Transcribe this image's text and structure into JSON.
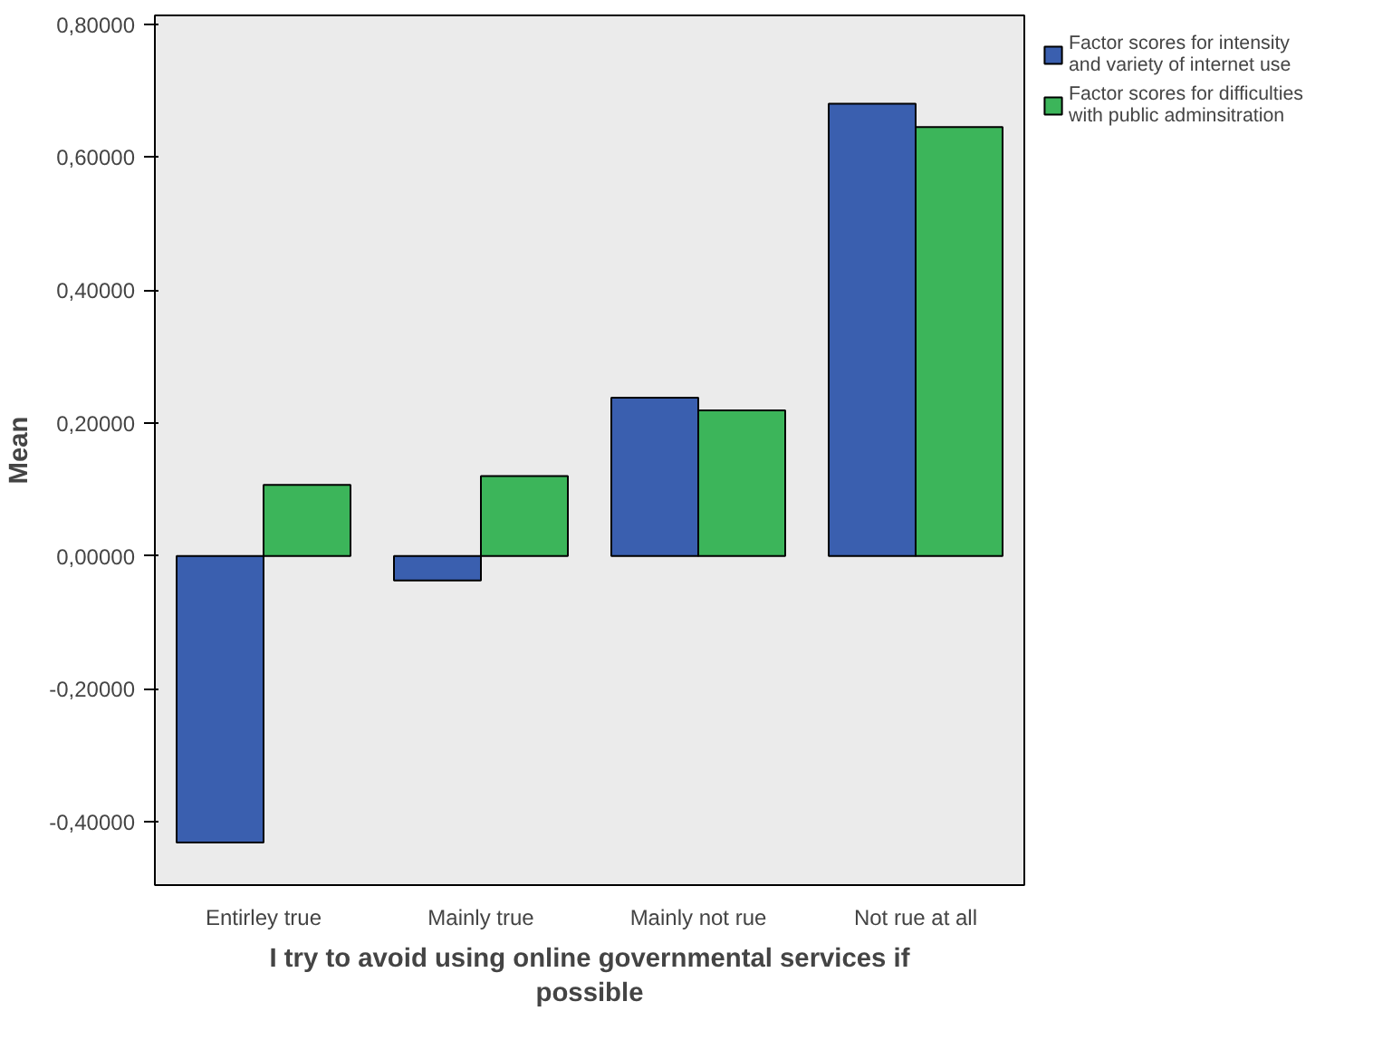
{
  "chart_data": {
    "type": "bar",
    "xlabel": "I try to avoid using online governmental services if possible",
    "ylabel": "Mean",
    "categories": [
      "Entirley true",
      "Mainly true",
      "Mainly not rue",
      "Not rue at all"
    ],
    "series": [
      {
        "name": "Factor scores for intensity and variety of internet use",
        "color": "#3a5faf",
        "values": [
          -0.431,
          -0.037,
          0.238,
          0.68
        ]
      },
      {
        "name": "Factor scores for difficulties with public adminsitration",
        "color": "#3cb55a",
        "values": [
          0.107,
          0.12,
          0.219,
          0.645
        ]
      }
    ],
    "ylim": [
      -0.495,
      0.813
    ],
    "yticks": [
      {
        "value": -0.4,
        "label": "-0,40000"
      },
      {
        "value": -0.2,
        "label": "-0,20000"
      },
      {
        "value": 0,
        "label": "0,00000"
      },
      {
        "value": 0.2,
        "label": "0,20000"
      },
      {
        "value": 0.4,
        "label": "0,40000"
      },
      {
        "value": 0.6,
        "label": "0,60000"
      },
      {
        "value": 0.8,
        "label": "0,80000"
      }
    ],
    "grid": false,
    "legend": "top right"
  }
}
